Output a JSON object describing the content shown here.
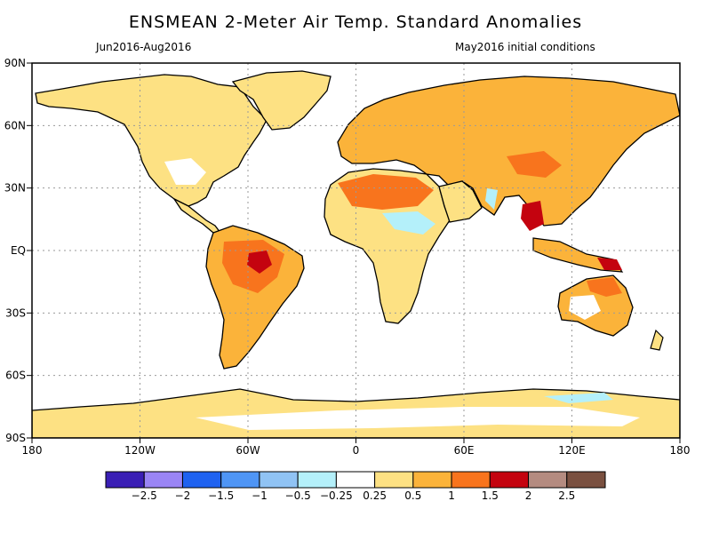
{
  "header": {
    "title": "ENSMEAN 2-Meter Air Temp. Standard Anomalies",
    "period": "Jun2016-Aug2016",
    "init": "May2016 initial conditions"
  },
  "axes": {
    "lat_labels": [
      "90N",
      "60N",
      "30N",
      "EQ",
      "30S",
      "60S",
      "90S"
    ],
    "lon_labels": [
      "180",
      "120W",
      "60W",
      "0",
      "60E",
      "120E",
      "180"
    ]
  },
  "colorbar": {
    "colors": [
      "#3a1fb5",
      "#9a85f5",
      "#1f62f0",
      "#4f95f5",
      "#90c3f4",
      "#b4f0fa",
      "#ffffff",
      "#fde183",
      "#fbb33a",
      "#f8741d",
      "#c4030f",
      "#b48b80",
      "#7a5040"
    ],
    "labels": [
      "-2.5",
      "-2",
      "-1.5",
      "-1",
      "-0.5",
      "-0.25",
      "0.25",
      "0.5",
      "1",
      "1.5",
      "2",
      "2.5"
    ]
  },
  "palette": {
    "light": "#fde183",
    "mid": "#fbb33a",
    "strong": "#f8741d",
    "extreme": "#c4030f",
    "cool_light": "#b4f0fa",
    "cool": "#90c3f4"
  }
}
